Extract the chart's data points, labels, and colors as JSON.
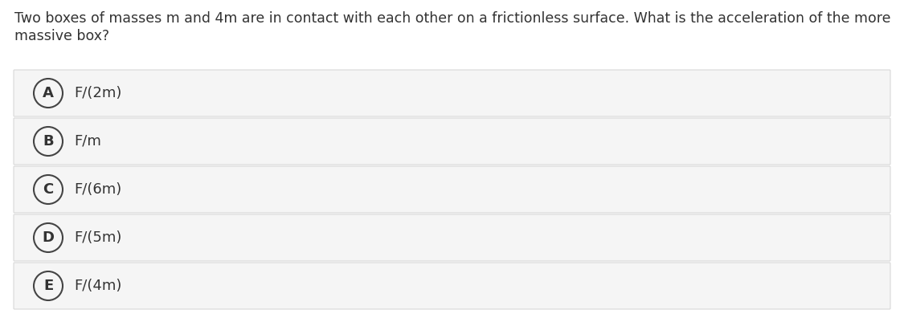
{
  "question_line1": "Two boxes of masses m and 4m are in contact with each other on a frictionless surface. What is the acceleration of the more",
  "question_line2": "massive box?",
  "options": [
    {
      "label": "A",
      "text": "F/(2m)"
    },
    {
      "label": "B",
      "text": "F/m"
    },
    {
      "label": "C",
      "text": "F/(6m)"
    },
    {
      "label": "D",
      "text": "F/(5m)"
    },
    {
      "label": "E",
      "text": "F/(4m)"
    }
  ],
  "background_color": "#ffffff",
  "option_bg_color": "#f5f5f5",
  "option_border_color": "#d8d8d8",
  "question_color": "#333333",
  "label_color": "#333333",
  "text_color": "#333333",
  "circle_edge_color": "#444444",
  "font_size_question": 12.5,
  "font_size_option": 13,
  "fig_width": 11.25,
  "fig_height": 4.01,
  "dpi": 100
}
